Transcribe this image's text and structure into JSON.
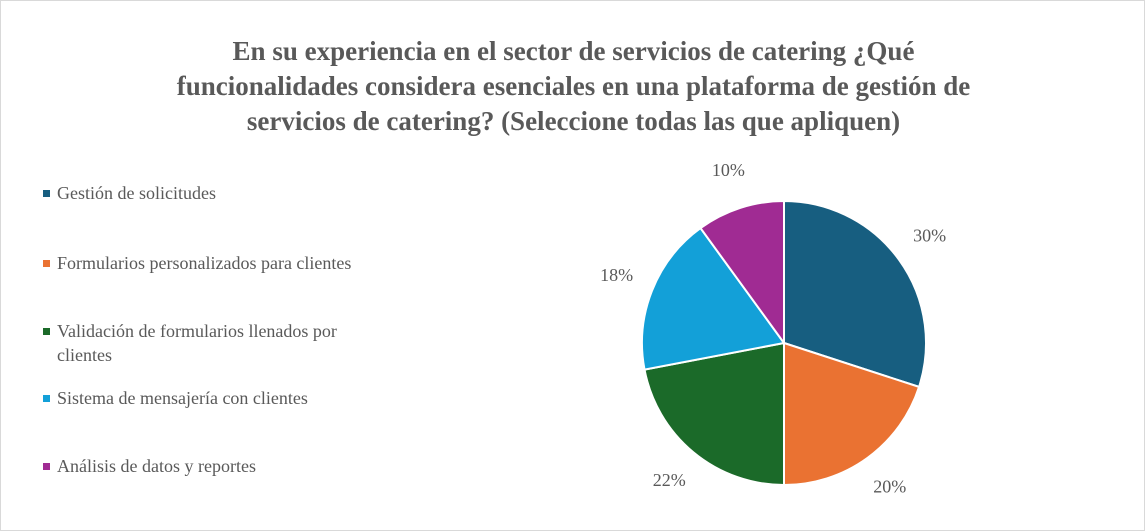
{
  "chart_data": {
    "type": "pie",
    "title": "En su experiencia en el sector de servicios de catering ¿Qué funcionalidades considera esenciales en una plataforma de gestión de servicios de catering? (Seleccione todas las que apliquen)",
    "categories": [
      "Gestión de solicitudes",
      "Formularios personalizados para clientes",
      "Validación de formularios llenados por clientes",
      "Sistema de mensajería con clientes",
      "Análisis de datos y reportes"
    ],
    "values": [
      30,
      20,
      22,
      18,
      10
    ],
    "value_labels": [
      "30%",
      "20%",
      "22%",
      "18%",
      "10%"
    ],
    "colors": [
      "#175e80",
      "#ea7232",
      "#1b6a29",
      "#13a0d8",
      "#a02b93"
    ],
    "legend": "left"
  }
}
